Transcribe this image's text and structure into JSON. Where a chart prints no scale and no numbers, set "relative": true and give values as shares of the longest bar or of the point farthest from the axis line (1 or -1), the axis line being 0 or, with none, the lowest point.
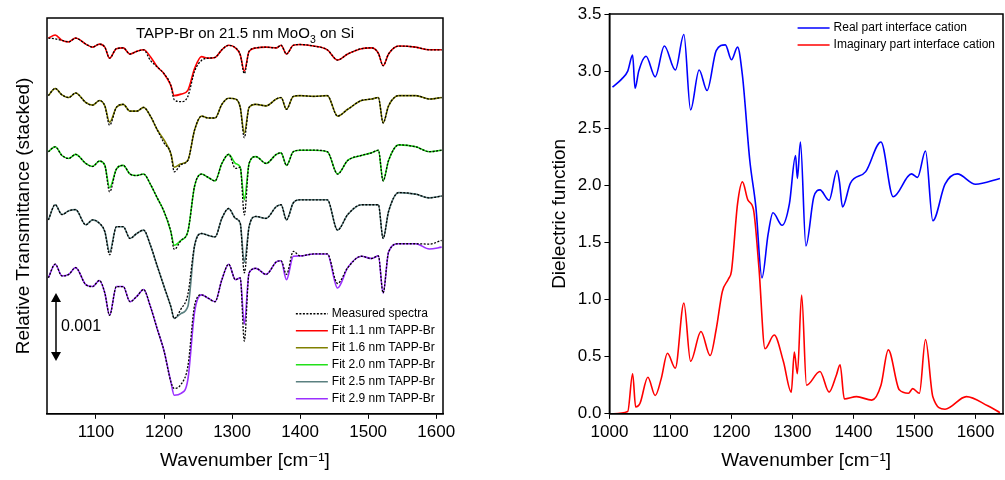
{
  "chart_data": [
    {
      "type": "line",
      "title": "TAPP-Br on 21.5 nm MoO$_{3}$ on Si",
      "xlabel": "Wavenumber [cm⁻¹]",
      "ylabel": "Relative Transmittance (stacked)",
      "relative": true,
      "marker": "none",
      "legend": "bottom right",
      "annotations": [
        "0.001"
      ],
      "xlim": [
        1028,
        1610
      ],
      "xticks": [
        1100,
        1200,
        1300,
        1400,
        1500,
        1600
      ],
      "x": [
        1030,
        1040,
        1050,
        1060,
        1070,
        1085,
        1095,
        1105,
        1113,
        1120,
        1130,
        1140,
        1150,
        1160,
        1170,
        1180,
        1190,
        1200,
        1210,
        1215,
        1225,
        1235,
        1245,
        1255,
        1265,
        1275,
        1285,
        1295,
        1305,
        1312,
        1318,
        1325,
        1335,
        1350,
        1365,
        1372,
        1380,
        1390,
        1400,
        1420,
        1440,
        1455,
        1470,
        1490,
        1505,
        1515,
        1522,
        1530,
        1545,
        1570,
        1590,
        1608
      ],
      "series": [
        {
          "name": "Measured spectra",
          "color": "#000000",
          "line_style": "dotted",
          "values": [
            0.992,
            0.99,
            0.986,
            0.982,
            0.992,
            0.976,
            0.968,
            0.976,
            0.968,
            0.939,
            0.964,
            0.966,
            0.95,
            0.957,
            0.961,
            0.933,
            0.916,
            0.898,
            0.867,
            0.829,
            0.824,
            0.838,
            0.905,
            0.933,
            0.939,
            0.941,
            0.961,
            0.973,
            0.966,
            0.948,
            0.898,
            0.957,
            0.966,
            0.968,
            0.966,
            0.973,
            0.95,
            0.973,
            0.975,
            0.971,
            0.961,
            0.934,
            0.95,
            0.964,
            0.966,
            0.952,
            0.919,
            0.95,
            0.971,
            0.968,
            0.961,
            0.961
          ]
        },
        {
          "color": "#000000",
          "line_style": "dotted",
          "values": [
            0.84,
            0.859,
            0.842,
            0.835,
            0.847,
            0.822,
            0.815,
            0.827,
            0.813,
            0.762,
            0.809,
            0.817,
            0.799,
            0.799,
            0.809,
            0.786,
            0.75,
            0.715,
            0.687,
            0.639,
            0.658,
            0.669,
            0.75,
            0.786,
            0.781,
            0.781,
            0.817,
            0.833,
            0.831,
            0.809,
            0.729,
            0.809,
            0.817,
            0.813,
            0.831,
            0.835,
            0.804,
            0.838,
            0.84,
            0.838,
            0.84,
            0.786,
            0.804,
            0.827,
            0.831,
            0.835,
            0.768,
            0.813,
            0.84,
            0.84,
            0.831,
            0.835
          ]
        },
        {
          "color": "#000000",
          "line_style": "dotted",
          "values": [
            0.692,
            0.705,
            0.682,
            0.674,
            0.685,
            0.661,
            0.653,
            0.667,
            0.656,
            0.586,
            0.646,
            0.656,
            0.633,
            0.629,
            0.633,
            0.606,
            0.57,
            0.534,
            0.481,
            0.434,
            0.458,
            0.481,
            0.602,
            0.633,
            0.624,
            0.615,
            0.661,
            0.685,
            0.648,
            0.651,
            0.525,
            0.661,
            0.679,
            0.661,
            0.685,
            0.689,
            0.656,
            0.692,
            0.696,
            0.696,
            0.692,
            0.633,
            0.669,
            0.682,
            0.689,
            0.696,
            0.615,
            0.669,
            0.71,
            0.705,
            0.692,
            0.696
          ]
        },
        {
          "color": "#000000",
          "line_style": "dotted",
          "values": [
            0.512,
            0.552,
            0.526,
            0.536,
            0.539,
            0.499,
            0.512,
            0.503,
            0.481,
            0.42,
            0.494,
            0.494,
            0.463,
            0.476,
            0.485,
            0.445,
            0.39,
            0.336,
            0.283,
            0.252,
            0.277,
            0.315,
            0.445,
            0.476,
            0.471,
            0.467,
            0.516,
            0.542,
            0.516,
            0.503,
            0.372,
            0.494,
            0.521,
            0.516,
            0.547,
            0.552,
            0.512,
            0.557,
            0.565,
            0.565,
            0.565,
            0.485,
            0.526,
            0.552,
            0.552,
            0.552,
            0.463,
            0.534,
            0.584,
            0.58,
            0.57,
            0.575
          ]
        },
        {
          "color": "#000000",
          "line_style": "dotted",
          "values": [
            0.359,
            0.395,
            0.364,
            0.368,
            0.386,
            0.341,
            0.336,
            0.352,
            0.319,
            0.26,
            0.336,
            0.336,
            0.296,
            0.31,
            0.328,
            0.283,
            0.224,
            0.166,
            0.085,
            0.067,
            0.078,
            0.125,
            0.287,
            0.314,
            0.305,
            0.296,
            0.354,
            0.395,
            0.354,
            0.359,
            0.192,
            0.372,
            0.384,
            0.368,
            0.401,
            0.404,
            0.368,
            0.429,
            0.417,
            0.422,
            0.422,
            0.344,
            0.386,
            0.416,
            0.41,
            0.417,
            0.319,
            0.427,
            0.449,
            0.449,
            0.448,
            0.458
          ]
        },
        {
          "name": "Fit 1.1 nm TAPP-Br",
          "color": "#ff0000",
          "values": [
            0.992,
            1.0,
            0.986,
            0.982,
            0.992,
            0.976,
            0.968,
            0.976,
            0.968,
            0.939,
            0.964,
            0.966,
            0.95,
            0.957,
            0.961,
            0.943,
            0.916,
            0.898,
            0.867,
            0.84,
            0.844,
            0.854,
            0.912,
            0.943,
            0.939,
            0.941,
            0.961,
            0.973,
            0.966,
            0.948,
            0.905,
            0.957,
            0.966,
            0.968,
            0.966,
            0.973,
            0.95,
            0.973,
            0.975,
            0.971,
            0.961,
            0.934,
            0.95,
            0.964,
            0.966,
            0.952,
            0.919,
            0.95,
            0.971,
            0.968,
            0.961,
            0.961
          ]
        },
        {
          "name": "Fit 1.6 nm TAPP-Br",
          "color": "#808000",
          "values": [
            0.84,
            0.859,
            0.842,
            0.835,
            0.847,
            0.822,
            0.815,
            0.827,
            0.813,
            0.77,
            0.809,
            0.817,
            0.799,
            0.799,
            0.809,
            0.786,
            0.75,
            0.723,
            0.687,
            0.651,
            0.66,
            0.669,
            0.75,
            0.786,
            0.781,
            0.781,
            0.817,
            0.833,
            0.831,
            0.809,
            0.741,
            0.809,
            0.817,
            0.813,
            0.831,
            0.835,
            0.804,
            0.838,
            0.84,
            0.838,
            0.84,
            0.786,
            0.804,
            0.827,
            0.831,
            0.835,
            0.768,
            0.813,
            0.84,
            0.84,
            0.831,
            0.835
          ]
        },
        {
          "name": "Fit 2.0 nm TAPP-Br",
          "color": "#22e01a",
          "values": [
            0.692,
            0.705,
            0.682,
            0.674,
            0.685,
            0.661,
            0.653,
            0.667,
            0.656,
            0.597,
            0.646,
            0.656,
            0.633,
            0.629,
            0.633,
            0.606,
            0.57,
            0.534,
            0.481,
            0.445,
            0.458,
            0.481,
            0.602,
            0.633,
            0.624,
            0.615,
            0.661,
            0.685,
            0.661,
            0.651,
            0.565,
            0.661,
            0.679,
            0.661,
            0.685,
            0.689,
            0.656,
            0.692,
            0.696,
            0.696,
            0.692,
            0.633,
            0.669,
            0.682,
            0.689,
            0.696,
            0.615,
            0.669,
            0.71,
            0.705,
            0.692,
            0.696
          ]
        },
        {
          "name": "Fit 2.5 nm TAPP-Br",
          "color": "#5a8080",
          "values": [
            0.512,
            0.552,
            0.526,
            0.536,
            0.539,
            0.499,
            0.512,
            0.503,
            0.481,
            0.427,
            0.494,
            0.494,
            0.463,
            0.476,
            0.485,
            0.445,
            0.39,
            0.336,
            0.283,
            0.252,
            0.265,
            0.283,
            0.445,
            0.476,
            0.471,
            0.467,
            0.516,
            0.542,
            0.516,
            0.503,
            0.4,
            0.494,
            0.521,
            0.516,
            0.547,
            0.552,
            0.512,
            0.557,
            0.565,
            0.565,
            0.565,
            0.485,
            0.526,
            0.552,
            0.552,
            0.552,
            0.463,
            0.534,
            0.584,
            0.58,
            0.57,
            0.575
          ]
        },
        {
          "name": "Fit 2.9 nm TAPP-Br",
          "color": "#9b30ff",
          "values": [
            0.359,
            0.395,
            0.364,
            0.368,
            0.386,
            0.341,
            0.336,
            0.352,
            0.319,
            0.26,
            0.336,
            0.336,
            0.296,
            0.31,
            0.328,
            0.283,
            0.224,
            0.166,
            0.085,
            0.049,
            0.054,
            0.09,
            0.27,
            0.314,
            0.305,
            0.296,
            0.354,
            0.395,
            0.354,
            0.359,
            0.237,
            0.372,
            0.384,
            0.368,
            0.401,
            0.404,
            0.354,
            0.416,
            0.417,
            0.422,
            0.422,
            0.332,
            0.386,
            0.416,
            0.41,
            0.417,
            0.319,
            0.427,
            0.449,
            0.449,
            0.435,
            0.44
          ]
        }
      ]
    },
    {
      "type": "line",
      "xlabel": "Wavenumber [cm⁻¹]",
      "ylabel": "Dielectric function",
      "marker": "none",
      "legend": "top right",
      "xlim": [
        1000,
        1645
      ],
      "xticks": [
        1000,
        1100,
        1200,
        1300,
        1400,
        1500,
        1600
      ],
      "ylim": [
        0,
        3.5
      ],
      "yticks": [
        {
          "value": 0,
          "label": "0.0"
        },
        0.5,
        {
          "value": 1,
          "label": "1.0"
        },
        1.5,
        {
          "value": 2,
          "label": "2.0"
        },
        2.5,
        {
          "value": 3,
          "label": "3.0"
        },
        3.5
      ],
      "series": [
        {
          "name": "Real part interface cation",
          "color": "#0000ff",
          "x": [
            1005,
            1020,
            1030,
            1038,
            1042,
            1048,
            1060,
            1075,
            1090,
            1108,
            1122,
            1133,
            1147,
            1160,
            1175,
            1190,
            1200,
            1210,
            1218,
            1230,
            1240,
            1250,
            1260,
            1268,
            1283,
            1295,
            1305,
            1308,
            1313,
            1322,
            1335,
            1345,
            1360,
            1373,
            1377,
            1382,
            1395,
            1420,
            1445,
            1465,
            1495,
            1505,
            1518,
            1530,
            1550,
            1570,
            1600,
            1640
          ],
          "values": [
            2.86,
            2.93,
            3.0,
            3.14,
            2.85,
            3.0,
            3.13,
            2.95,
            3.22,
            3.01,
            3.32,
            2.66,
            3.01,
            2.83,
            3.18,
            3.23,
            3.1,
            3.21,
            2.96,
            2.22,
            1.81,
            1.19,
            1.57,
            1.76,
            1.65,
            1.84,
            2.26,
            2.06,
            2.38,
            1.47,
            1.9,
            1.96,
            1.87,
            2.13,
            2.03,
            1.81,
            2.02,
            2.12,
            2.38,
            1.9,
            2.1,
            2.07,
            2.3,
            1.69,
            2.01,
            2.1,
            2.01,
            2.06
          ]
        },
        {
          "name": "Imaginary part interface cation",
          "color": "#ff0000",
          "x": [
            1005,
            1030,
            1038,
            1043,
            1050,
            1063,
            1075,
            1085,
            1095,
            1108,
            1122,
            1133,
            1150,
            1165,
            1175,
            1185,
            1195,
            1200,
            1210,
            1218,
            1227,
            1236,
            1245,
            1255,
            1270,
            1285,
            1298,
            1303,
            1308,
            1315,
            1323,
            1345,
            1360,
            1372,
            1378,
            1385,
            1405,
            1430,
            1445,
            1457,
            1475,
            1490,
            1497,
            1508,
            1518,
            1530,
            1550,
            1585,
            1620,
            1640
          ],
          "values": [
            0,
            0.02,
            0.35,
            0.06,
            0.09,
            0.32,
            0.16,
            0.31,
            0.53,
            0.4,
            0.97,
            0.46,
            0.72,
            0.51,
            0.74,
            1.07,
            1.18,
            1.25,
            1.84,
            2.03,
            1.87,
            1.79,
            1.28,
            0.57,
            0.69,
            0.46,
            0.19,
            0.54,
            0.35,
            1.04,
            0.25,
            0.37,
            0.19,
            0.34,
            0.43,
            0.13,
            0.15,
            0.12,
            0.25,
            0.56,
            0.21,
            0.18,
            0.22,
            0.18,
            0.65,
            0.15,
            0.04,
            0.15,
            0.07,
            0.01
          ]
        }
      ]
    }
  ]
}
